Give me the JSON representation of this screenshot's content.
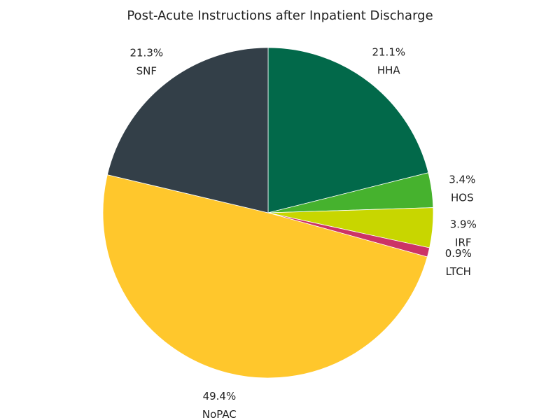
{
  "chart_data": {
    "type": "pie",
    "title": "Post-Acute Instructions after Inpatient Discharge",
    "slices": [
      {
        "label": "HHA",
        "value": 21.1,
        "display": "21.1%",
        "color": "#02694a"
      },
      {
        "label": "HOS",
        "value": 3.4,
        "display": "3.4%",
        "color": "#46b22e"
      },
      {
        "label": "IRF",
        "value": 3.9,
        "display": "3.9%",
        "color": "#c8d600"
      },
      {
        "label": "LTCH",
        "value": 0.9,
        "display": "0.9%",
        "color": "#cc3366"
      },
      {
        "label": "NoPAC",
        "value": 49.4,
        "display": "49.4%",
        "color": "#ffc72c"
      },
      {
        "label": "SNF",
        "value": 21.3,
        "display": "21.3%",
        "color": "#333f48"
      }
    ],
    "start_angle_deg": 0,
    "direction": "clockwise",
    "legend": "none"
  }
}
